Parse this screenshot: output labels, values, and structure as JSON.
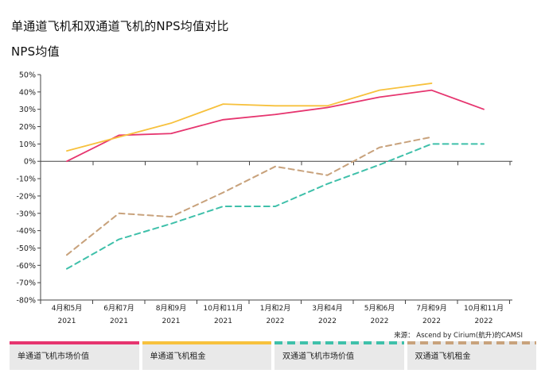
{
  "title": "单通道飞机和双通道飞机的NPS均值对比",
  "ylabel": "NPS均值",
  "source": "来源： Ascend by Cirium(航升)的CAMSI",
  "colors": {
    "single_aisle_market_value": "#e6356f",
    "single_aisle_lease_rate": "#f7c13d",
    "twin_aisle_market_value": "#3fc0aa",
    "twin_aisle_lease_rate": "#c8a27c"
  },
  "legend": [
    {
      "label": "单通道飞机市场价值",
      "color": "#e6356f",
      "style": "solid"
    },
    {
      "label": "单通道飞机租金",
      "color": "#f7c13d",
      "style": "solid"
    },
    {
      "label": "双通道飞机市场价值",
      "color": "#3fc0aa",
      "style": "dashed"
    },
    {
      "label": "双通道飞机租金",
      "color": "#c8a27c",
      "style": "dashed"
    }
  ],
  "chart_data": {
    "type": "line",
    "title": "单通道飞机和双通道飞机的NPS均值对比",
    "xlabel": "",
    "ylabel": "NPS均值",
    "categories": [
      "4月和5月 2021",
      "6月和7月 2021",
      "8月和9月 2021",
      "10月和11月 2021",
      "1月和2月 2022",
      "3月和4月 2022",
      "5月和6月 2022",
      "7月和9月 2022",
      "10月和11月 2022"
    ],
    "category_lines": [
      [
        "4月和5月",
        "2021"
      ],
      [
        "6月和7月",
        "2021"
      ],
      [
        "8月和9月",
        "2021"
      ],
      [
        "10月和11月",
        "2021"
      ],
      [
        "1月和2月",
        "2022"
      ],
      [
        "3月和4月",
        "2022"
      ],
      [
        "5月和6月",
        "2022"
      ],
      [
        "7月和9月",
        "2022"
      ],
      [
        "10月和11月",
        "2022"
      ]
    ],
    "ylim": [
      -80,
      50
    ],
    "ytick_values": [
      50,
      40,
      30,
      20,
      10,
      0,
      -10,
      -20,
      -30,
      -40,
      -50,
      -60,
      -70,
      -80
    ],
    "ytick_labels": [
      "50%",
      "40%",
      "30%",
      "20%",
      "10%",
      "0%",
      "-10%",
      "-20%",
      "-30%",
      "-40%",
      "-50%",
      "-60%",
      "-70%",
      "-80%"
    ],
    "grid": false,
    "legend_position": "bottom",
    "series": [
      {
        "name": "单通道飞机市场价值",
        "color": "#e6356f",
        "style": "solid",
        "values": [
          0,
          15,
          16,
          24,
          27,
          31,
          37,
          41,
          30
        ]
      },
      {
        "name": "单通道飞机租金",
        "color": "#f7c13d",
        "style": "solid",
        "values": [
          6,
          14,
          22,
          33,
          32,
          32,
          41,
          45,
          null
        ]
      },
      {
        "name": "双通道飞机市场价值",
        "color": "#3fc0aa",
        "style": "dashed",
        "values": [
          -62,
          -45,
          -36,
          -26,
          -26,
          -13,
          -2,
          10,
          10
        ]
      },
      {
        "name": "双通道飞机租金",
        "color": "#c8a27c",
        "style": "dashed",
        "values": [
          -54,
          -30,
          -32,
          -18,
          -3,
          -8,
          8,
          14,
          null
        ]
      }
    ]
  }
}
